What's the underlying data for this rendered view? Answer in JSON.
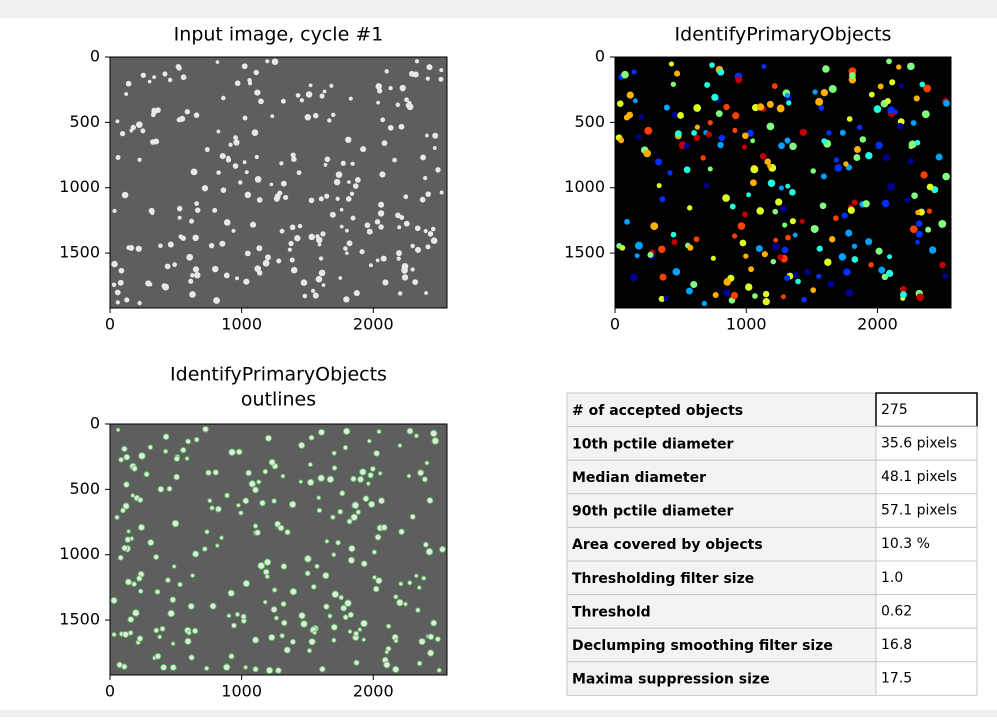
{
  "panels": [
    {
      "title_lines": [
        "Input image, cycle #1"
      ],
      "style": "gray",
      "xlim": [
        0,
        2560
      ],
      "ylim": [
        0,
        1920
      ],
      "xticks": [
        0,
        1000,
        2000
      ],
      "yticks": [
        0,
        500,
        1000,
        1500
      ]
    },
    {
      "title_lines": [
        "IdentifyPrimaryObjects"
      ],
      "style": "labels",
      "xlim": [
        0,
        2560
      ],
      "ylim": [
        0,
        1920
      ],
      "xticks": [
        0,
        1000,
        2000
      ],
      "yticks": [
        0,
        500,
        1000,
        1500
      ]
    },
    {
      "title_lines": [
        "IdentifyPrimaryObjects",
        "outlines"
      ],
      "style": "outlines",
      "xlim": [
        0,
        2560
      ],
      "ylim": [
        0,
        1920
      ],
      "xticks": [
        0,
        1000,
        2000
      ],
      "yticks": [
        0,
        500,
        1000,
        1500
      ]
    }
  ],
  "table": {
    "rows": [
      [
        "# of accepted objects",
        "275"
      ],
      [
        "10th pctile diameter",
        "35.6 pixels"
      ],
      [
        "Median diameter",
        "48.1 pixels"
      ],
      [
        "90th pctile diameter",
        "57.1 pixels"
      ],
      [
        "Area covered by objects",
        "10.3 %"
      ],
      [
        "Thresholding filter size",
        "1.0"
      ],
      [
        "Threshold",
        "0.62"
      ],
      [
        "Declumping smoothing filter size",
        "16.8"
      ],
      [
        "Maxima suppression size",
        "17.5"
      ]
    ]
  }
}
